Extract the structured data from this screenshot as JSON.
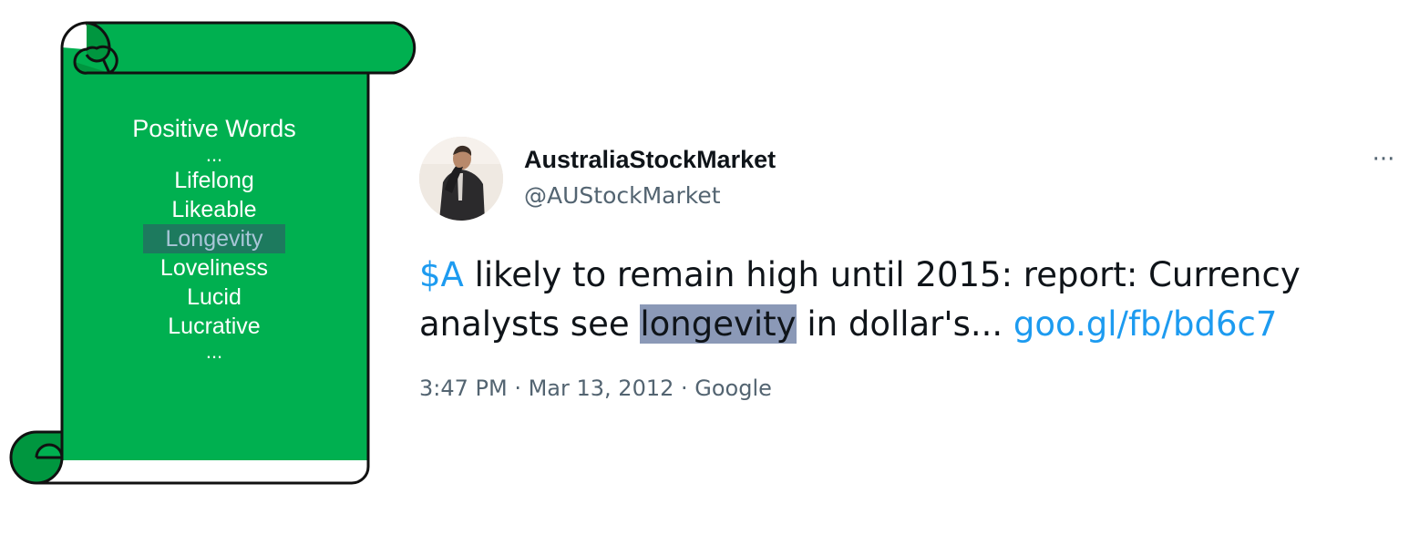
{
  "scroll": {
    "title": "Positive Words",
    "ellipsis_top": "...",
    "words": [
      "Lifelong",
      "Likeable",
      "Longevity",
      "Loveliness",
      "Lucid",
      "Lucrative"
    ],
    "highlighted_index": 2,
    "ellipsis_bottom": "...",
    "colors": {
      "fill": "#00b050",
      "outline": "#111111",
      "highlight_bg": "#1d7a5e"
    }
  },
  "tweet": {
    "display_name": "AustraliaStockMarket",
    "handle": "@AUStockMarket",
    "more_label": "···",
    "body": {
      "cashtag": "$A",
      "text_before": " likely to remain high until 2015: report: Currency analysts see ",
      "highlighted": "longevity",
      "text_after": " in dollar's... ",
      "link": "goo.gl/fb/bd6c7"
    },
    "timestamp": "3:47 PM · Mar 13, 2012 · Google",
    "colors": {
      "link": "#1d9bf0",
      "secondary_text": "#536471",
      "highlight_bg": "#8b99b7"
    }
  }
}
